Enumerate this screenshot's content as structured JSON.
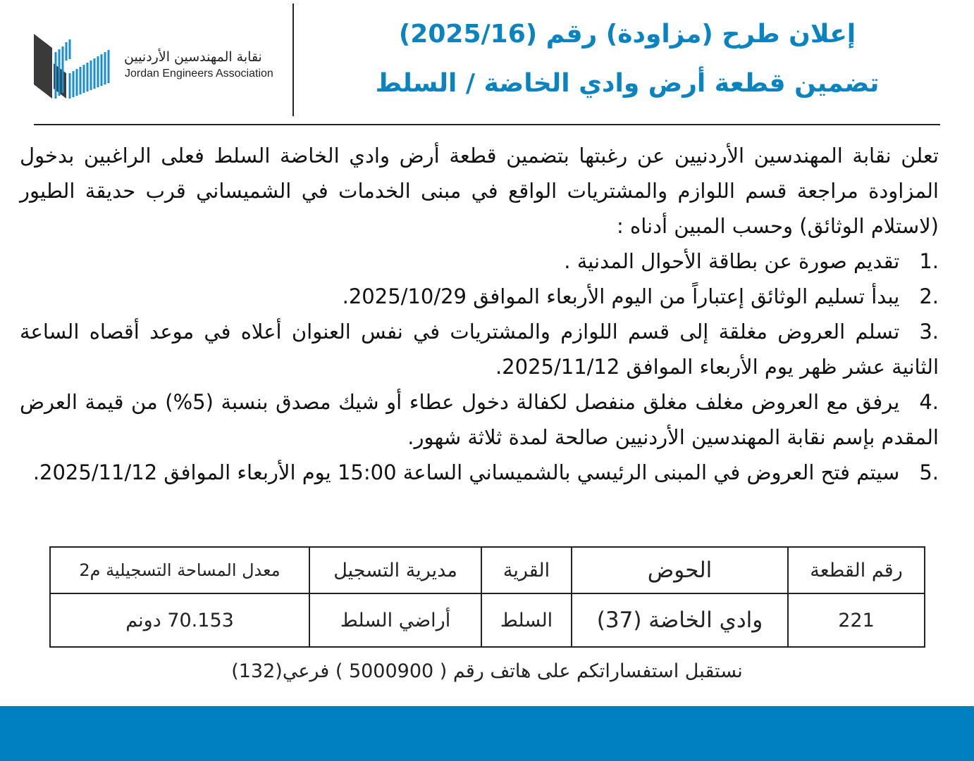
{
  "header": {
    "logo": {
      "name_ar": "نقابة المهندسين الأردنيين",
      "name_en": "Jordan Engineers Association"
    },
    "title_line1": "إعلان طرح (مزاودة) رقم (2025/16)",
    "title_line2": "تضمين قطعة أرض وادي الخاضة / السلط",
    "accent_color": "#0a84c0"
  },
  "body": {
    "intro": "تعلن نقابة المهندسين الأردنيين عن رغبتها بتضمين قطعة أرض وادي الخاضة السلط فعلى الراغبين بدخول المزاودة مراجعة قسم اللوازم والمشتريات الواقع في مبنى الخدمات في الشميساني قرب حديقة الطيور (لاستلام الوثائق) وحسب المبين أدناه :",
    "items": [
      {
        "num": "1.",
        "text": "تقديم صورة عن بطاقة الأحوال المدنية ."
      },
      {
        "num": "2.",
        "text": "يبدأ تسليم الوثائق إعتباراً من اليوم الأربعاء الموافق 2025/10/29."
      },
      {
        "num": "3.",
        "text": "تسلم العروض مغلقة إلى قسم اللوازم والمشتريات في نفس العنوان أعلاه في موعد أقصاه الساعة الثانية عشر ظهر يوم الأربعاء الموافق 2025/11/12."
      },
      {
        "num": "4.",
        "text": "يرفق مع العروض مغلف مغلق منفصل لكفالة دخول عطاء أو شيك مصدق بنسبة (5%) من قيمة العرض المقدم بإسم نقابة المهندسين الأردنيين صالحة لمدة ثلاثة شهور."
      },
      {
        "num": "5.",
        "text": "سيتم فتح العروض في المبنى الرئيسي بالشميساني الساعة 15:00 يوم الأربعاء الموافق 2025/11/12."
      }
    ]
  },
  "table": {
    "headers": [
      "رقم القطعة",
      "الحوض",
      "القرية",
      "مديرية التسجيل",
      "معدل المساحة التسجيلية م2"
    ],
    "rows": [
      [
        "221",
        "وادي الخاضة (37)",
        "السلط",
        "أراضي السلط",
        "70.153 دونم"
      ]
    ]
  },
  "footer": {
    "contact": "نستقبل استفساراتكم  على هاتف رقم ( 5000900 ) فرعي(132)",
    "band_color": "#0080c0"
  }
}
